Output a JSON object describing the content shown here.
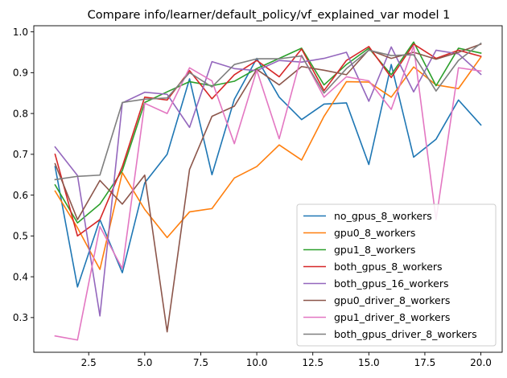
{
  "chart_data": {
    "type": "line",
    "title": "Compare info/learner/default_policy/vf_explained_var model 1",
    "xlabel": "",
    "ylabel": "",
    "xlim": [
      0.05,
      20.95
    ],
    "ylim": [
      0.215,
      1.015
    ],
    "x_ticks": [
      2.5,
      5.0,
      7.5,
      10.0,
      12.5,
      15.0,
      17.5,
      20.0
    ],
    "x_tick_labels": [
      "2.5",
      "5.0",
      "7.5",
      "10.0",
      "12.5",
      "15.0",
      "17.5",
      "20.0"
    ],
    "y_ticks": [
      0.3,
      0.4,
      0.5,
      0.6,
      0.7,
      0.8,
      0.9,
      1.0
    ],
    "y_tick_labels": [
      "0.3",
      "0.4",
      "0.5",
      "0.6",
      "0.7",
      "0.8",
      "0.9",
      "1.0"
    ],
    "grid": false,
    "legend_position": "lower-right",
    "x": [
      1,
      2,
      3,
      4,
      5,
      6,
      7,
      8,
      9,
      10,
      11,
      12,
      13,
      14,
      15,
      16,
      17,
      18,
      19,
      20
    ],
    "series": [
      {
        "name": "no_gpus_8_workers",
        "color": "#1f77b4",
        "values": [
          0.67,
          0.375,
          0.54,
          0.41,
          0.63,
          0.7,
          0.885,
          0.65,
          0.835,
          0.935,
          0.84,
          0.785,
          0.823,
          0.826,
          0.675,
          0.92,
          0.693,
          0.737,
          0.833,
          0.772
        ]
      },
      {
        "name": "gpu0_8_workers",
        "color": "#ff7f0e",
        "values": [
          0.61,
          0.52,
          0.418,
          0.655,
          0.565,
          0.496,
          0.559,
          0.567,
          0.642,
          0.67,
          0.723,
          0.686,
          0.793,
          0.878,
          0.877,
          0.84,
          0.914,
          0.87,
          0.861,
          0.938
        ]
      },
      {
        "name": "gpu1_8_workers",
        "color": "#2ca02c",
        "values": [
          0.625,
          0.532,
          0.578,
          0.66,
          0.827,
          0.853,
          0.878,
          0.868,
          0.879,
          0.91,
          0.935,
          0.96,
          0.87,
          0.92,
          0.96,
          0.895,
          0.975,
          0.868,
          0.96,
          0.948
        ]
      },
      {
        "name": "both_gpus_8_workers",
        "color": "#d62728",
        "values": [
          0.7,
          0.5,
          0.54,
          0.67,
          0.84,
          0.833,
          0.905,
          0.836,
          0.895,
          0.93,
          0.89,
          0.958,
          0.856,
          0.93,
          0.964,
          0.888,
          0.97,
          0.935,
          0.955,
          0.94
        ]
      },
      {
        "name": "both_gpus_16_workers",
        "color": "#9467bd",
        "values": [
          0.718,
          0.648,
          0.304,
          0.826,
          0.852,
          0.847,
          0.766,
          0.927,
          0.91,
          0.905,
          0.93,
          0.926,
          0.935,
          0.95,
          0.83,
          0.963,
          0.853,
          0.955,
          0.946,
          0.896
        ]
      },
      {
        "name": "gpu0_driver_8_workers",
        "color": "#8c564b",
        "values": [
          0.677,
          0.54,
          0.636,
          0.578,
          0.649,
          0.265,
          0.663,
          0.793,
          0.818,
          0.908,
          0.87,
          0.915,
          0.906,
          0.895,
          0.956,
          0.935,
          0.95,
          0.933,
          0.95,
          0.97
        ]
      },
      {
        "name": "gpu1_driver_8_workers",
        "color": "#e377c2",
        "values": [
          0.255,
          0.245,
          0.523,
          0.42,
          0.825,
          0.8,
          0.912,
          0.88,
          0.726,
          0.906,
          0.738,
          0.943,
          0.84,
          0.89,
          0.88,
          0.81,
          0.965,
          0.54,
          0.912,
          0.904
        ]
      },
      {
        "name": "both_gpus_driver_8_workers",
        "color": "#7f7f7f",
        "values": [
          0.638,
          0.646,
          0.649,
          0.827,
          0.835,
          0.838,
          0.9,
          0.865,
          0.92,
          0.934,
          0.934,
          0.941,
          0.85,
          0.91,
          0.955,
          0.942,
          0.944,
          0.855,
          0.93,
          0.972
        ]
      }
    ]
  }
}
